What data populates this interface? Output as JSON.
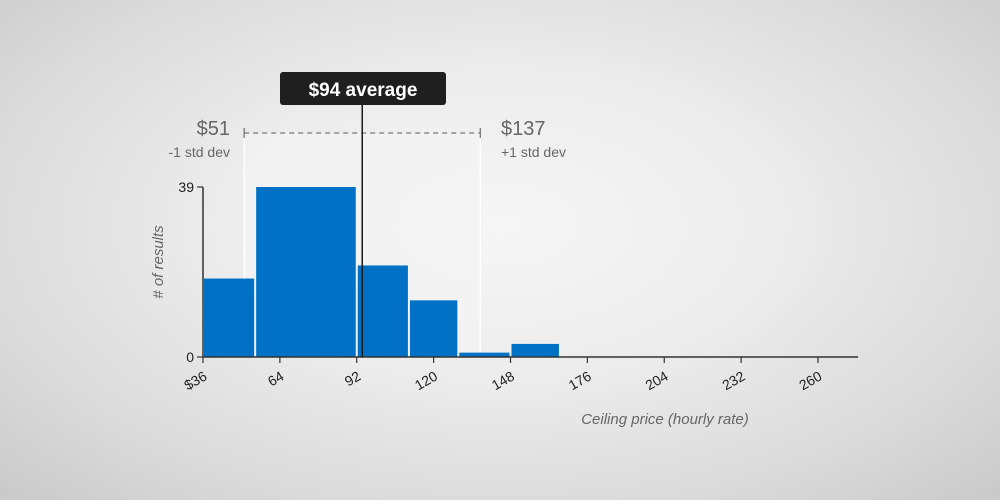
{
  "chart_data": {
    "type": "bar",
    "bins": [
      {
        "start": 36,
        "end": 55,
        "count": 18
      },
      {
        "start": 55,
        "end": 92,
        "count": 39
      },
      {
        "start": 92,
        "end": 111,
        "count": 21
      },
      {
        "start": 111,
        "end": 129,
        "count": 13
      },
      {
        "start": 129,
        "end": 148,
        "count": 1
      },
      {
        "start": 148,
        "end": 166,
        "count": 3
      }
    ],
    "x_ticks": [
      "$36",
      "64",
      "92",
      "120",
      "148",
      "176",
      "204",
      "232",
      "260"
    ],
    "xlim": [
      36,
      260
    ],
    "y_ticks": [
      "39",
      "0"
    ],
    "ylim": [
      0,
      39
    ],
    "xlabel": "Ceiling price (hourly rate)",
    "ylabel": "# of results",
    "average": {
      "value": 94,
      "label": "$94 average"
    },
    "minus_std": {
      "value": 51,
      "label": "$51",
      "sublabel": "-1 std dev"
    },
    "plus_std": {
      "value": 137,
      "label": "$137",
      "sublabel": "+1 std dev"
    },
    "bar_color": "#0071c5",
    "grid": false
  }
}
